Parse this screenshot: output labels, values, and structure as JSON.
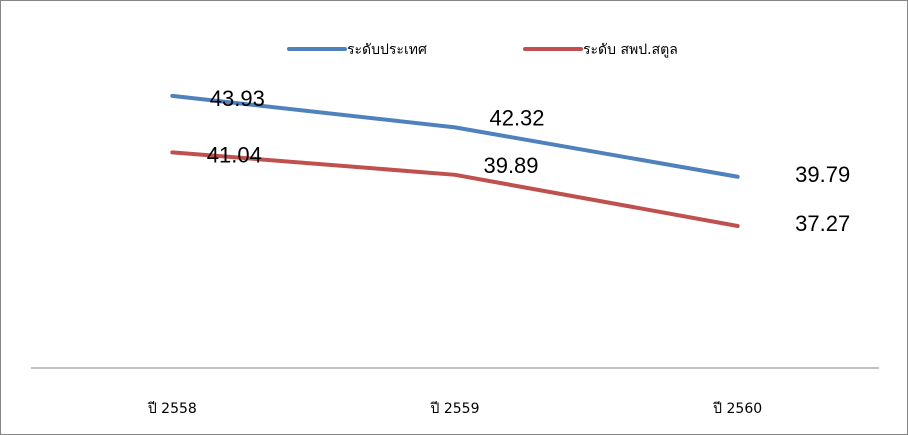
{
  "chart_data": {
    "type": "line",
    "title": "",
    "xlabel": "",
    "ylabel": "",
    "categories": [
      "ปี 2558",
      "ปี 2559",
      "ปี 2560"
    ],
    "series": [
      {
        "name": "ระดับประเทศ",
        "values": [
          43.93,
          42.32,
          39.79
        ],
        "color": "#4F81BD"
      },
      {
        "name": "ระดับ สพป.สตูล",
        "values": [
          41.04,
          39.89,
          37.27
        ],
        "color": "#C0504D"
      }
    ],
    "ylim": [
      30,
      45
    ],
    "grid": false,
    "legend": "top-center",
    "axis_color": "#868686"
  }
}
